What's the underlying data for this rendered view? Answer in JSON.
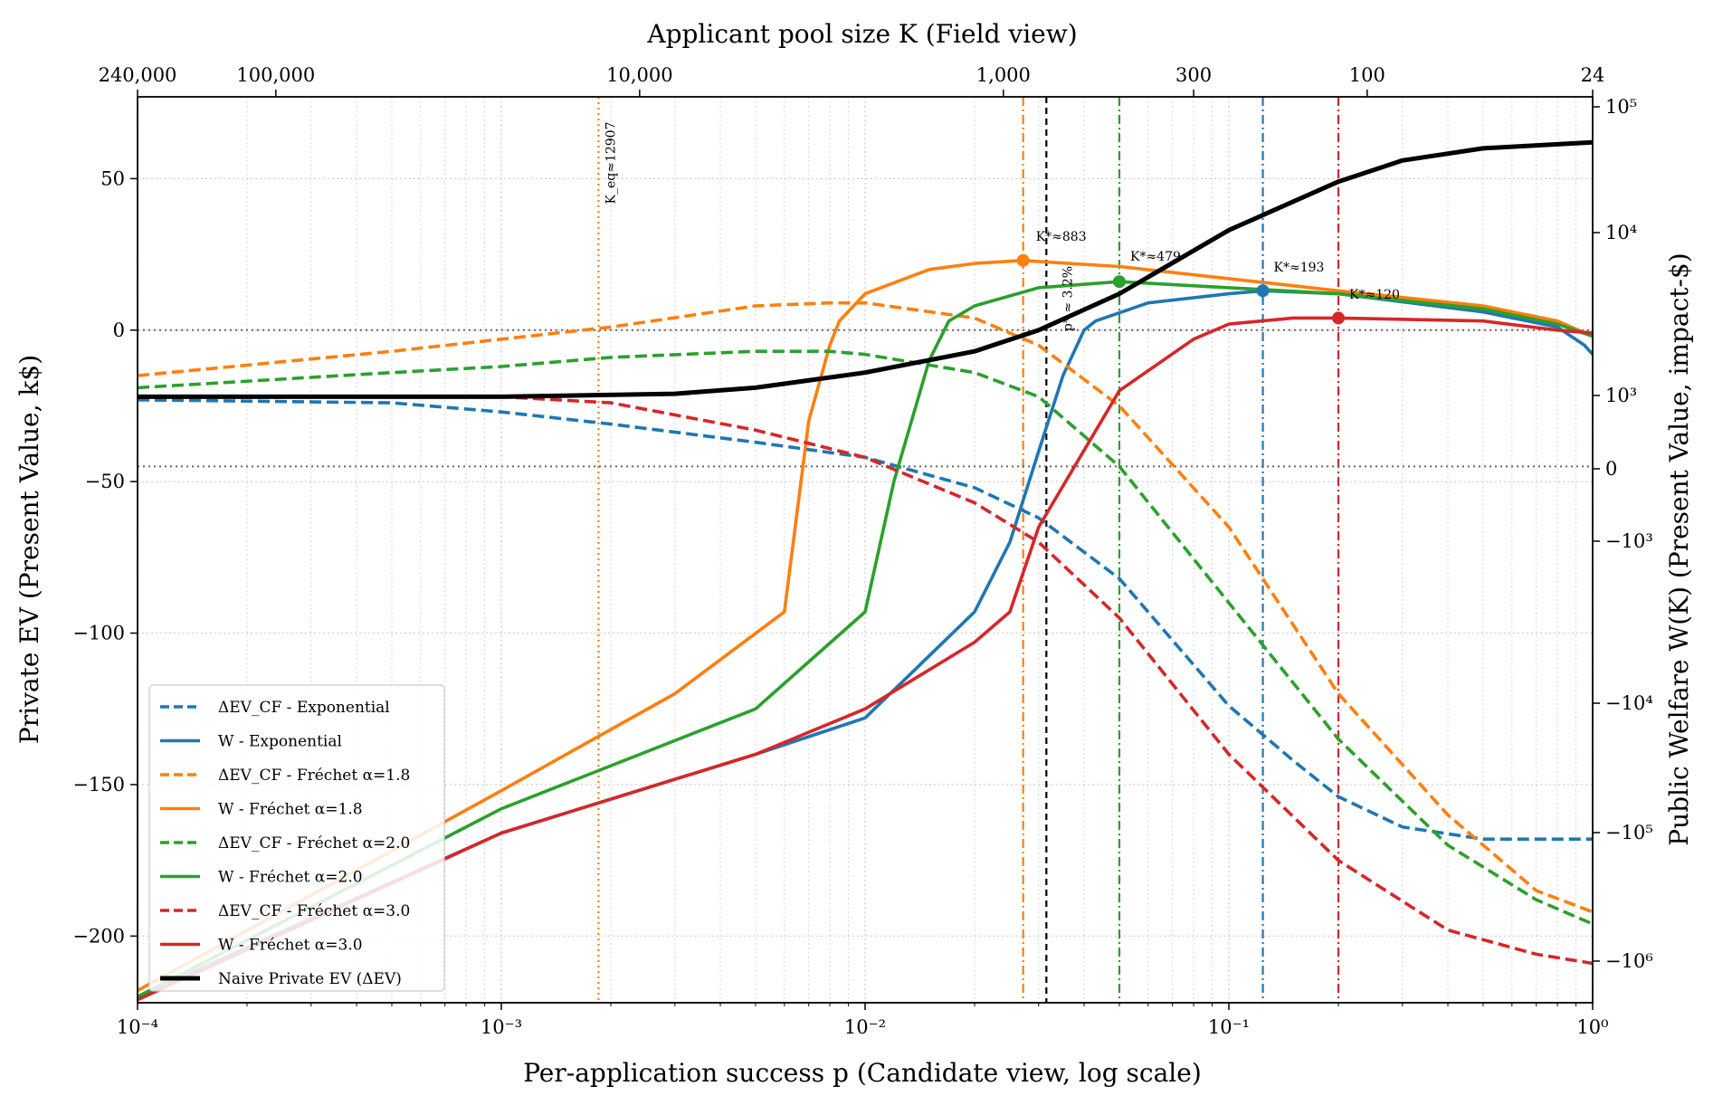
{
  "chart_data": {
    "type": "line",
    "title": "",
    "xlabel": "Per-application success p (Candidate view, log scale)",
    "ylabel_left": "Private EV (Present Value, k$)",
    "ylabel_right": "Public Welfare W(K) (Present Value, impact-$)",
    "top_xlabel": "Applicant pool size K (Field view)",
    "x_scale": "log",
    "xlim": [
      0.0001,
      1
    ],
    "ylim_left": [
      -222,
      77
    ],
    "right_axis_scale": "symlog",
    "grid": true,
    "legend_position": "lower-left",
    "x_ticks": [
      {
        "value": 0.0001,
        "label": "10⁻⁴"
      },
      {
        "value": 0.001,
        "label": "10⁻³"
      },
      {
        "value": 0.01,
        "label": "10⁻²"
      },
      {
        "value": 0.1,
        "label": "10⁻¹"
      },
      {
        "value": 1,
        "label": "10⁰"
      }
    ],
    "top_ticks": [
      {
        "K": 240000,
        "label": "240,000"
      },
      {
        "K": 100000,
        "label": "100,000"
      },
      {
        "K": 10000,
        "label": "10,000"
      },
      {
        "K": 1000,
        "label": "1,000"
      },
      {
        "K": 300,
        "label": "300"
      },
      {
        "K": 100,
        "label": "100"
      },
      {
        "K": 24,
        "label": "24"
      }
    ],
    "left_ticks": [
      {
        "value": 50,
        "label": "50"
      },
      {
        "value": 0,
        "label": "0"
      },
      {
        "value": -50,
        "label": "−50"
      },
      {
        "value": -100,
        "label": "−100"
      },
      {
        "value": -150,
        "label": "−150"
      },
      {
        "value": -200,
        "label": "−200"
      }
    ],
    "right_ticks": [
      {
        "value": 100000,
        "label": "10⁵"
      },
      {
        "value": 10000,
        "label": "10⁴"
      },
      {
        "value": 1000,
        "label": "10³"
      },
      {
        "value": 0,
        "label": "0"
      },
      {
        "value": -1000,
        "label": "−10³"
      },
      {
        "value": -10000,
        "label": "−10⁴"
      },
      {
        "value": -100000,
        "label": "−10⁵"
      },
      {
        "value": -1000000,
        "label": "−10⁶"
      }
    ],
    "hlines": [
      0,
      -45
    ],
    "colors": {
      "exponential": "#1f77b4",
      "frechet_1_8": "#ff7f0e",
      "frechet_2_0": "#2ca02c",
      "frechet_3_0": "#d62728",
      "naive": "#000000"
    },
    "series": [
      {
        "name": "ΔEV_CF - Exponential",
        "color_key": "exponential",
        "style": "dashed",
        "points": [
          [
            0.0001,
            -23
          ],
          [
            0.0005,
            -24
          ],
          [
            0.001,
            -27
          ],
          [
            0.002,
            -31
          ],
          [
            0.005,
            -37
          ],
          [
            0.01,
            -42
          ],
          [
            0.02,
            -52
          ],
          [
            0.03,
            -62
          ],
          [
            0.05,
            -82
          ],
          [
            0.1,
            -124
          ],
          [
            0.15,
            -142
          ],
          [
            0.2,
            -154
          ],
          [
            0.3,
            -164
          ],
          [
            0.5,
            -168
          ],
          [
            1,
            -168
          ]
        ]
      },
      {
        "name": "W - Exponential",
        "color_key": "exponential",
        "style": "solid",
        "points": [
          [
            0.0001,
            -220
          ],
          [
            0.001,
            -166
          ],
          [
            0.005,
            -140
          ],
          [
            0.01,
            -128
          ],
          [
            0.02,
            -93
          ],
          [
            0.025,
            -70
          ],
          [
            0.03,
            -40
          ],
          [
            0.035,
            -15
          ],
          [
            0.04,
            0
          ],
          [
            0.043,
            3
          ],
          [
            0.06,
            9
          ],
          [
            0.1,
            12
          ],
          [
            0.125,
            13
          ],
          [
            0.2,
            12
          ],
          [
            0.5,
            6
          ],
          [
            0.8,
            1
          ],
          [
            0.95,
            -5
          ],
          [
            1,
            -8
          ]
        ]
      },
      {
        "name": "ΔEV_CF - Fréchet α=1.8",
        "color_key": "frechet_1_8",
        "style": "dashed",
        "points": [
          [
            0.0001,
            -15
          ],
          [
            0.0005,
            -7
          ],
          [
            0.001,
            -3
          ],
          [
            0.002,
            1
          ],
          [
            0.005,
            8
          ],
          [
            0.008,
            9
          ],
          [
            0.01,
            9
          ],
          [
            0.02,
            4
          ],
          [
            0.03,
            -5
          ],
          [
            0.05,
            -25
          ],
          [
            0.1,
            -65
          ],
          [
            0.2,
            -120
          ],
          [
            0.4,
            -160
          ],
          [
            0.7,
            -185
          ],
          [
            1,
            -192
          ]
        ]
      },
      {
        "name": "W - Fréchet α=1.8",
        "color_key": "frechet_1_8",
        "style": "solid",
        "points": [
          [
            0.0001,
            -218
          ],
          [
            0.001,
            -152
          ],
          [
            0.003,
            -120
          ],
          [
            0.006,
            -93
          ],
          [
            0.007,
            -30
          ],
          [
            0.008,
            -5
          ],
          [
            0.0085,
            3
          ],
          [
            0.01,
            12
          ],
          [
            0.015,
            20
          ],
          [
            0.02,
            22
          ],
          [
            0.027,
            23
          ],
          [
            0.05,
            21
          ],
          [
            0.1,
            17
          ],
          [
            0.2,
            13
          ],
          [
            0.5,
            8
          ],
          [
            0.8,
            3
          ],
          [
            1,
            -2
          ]
        ]
      },
      {
        "name": "ΔEV_CF - Fréchet α=2.0",
        "color_key": "frechet_2_0",
        "style": "dashed",
        "points": [
          [
            0.0001,
            -19
          ],
          [
            0.0005,
            -14
          ],
          [
            0.001,
            -12
          ],
          [
            0.002,
            -9
          ],
          [
            0.005,
            -7
          ],
          [
            0.008,
            -7
          ],
          [
            0.01,
            -8
          ],
          [
            0.02,
            -14
          ],
          [
            0.03,
            -22
          ],
          [
            0.05,
            -45
          ],
          [
            0.1,
            -90
          ],
          [
            0.2,
            -135
          ],
          [
            0.4,
            -170
          ],
          [
            0.7,
            -188
          ],
          [
            1,
            -196
          ]
        ]
      },
      {
        "name": "W - Fréchet α=2.0",
        "color_key": "frechet_2_0",
        "style": "solid",
        "points": [
          [
            0.0001,
            -220
          ],
          [
            0.001,
            -158
          ],
          [
            0.005,
            -125
          ],
          [
            0.01,
            -93
          ],
          [
            0.012,
            -50
          ],
          [
            0.015,
            -10
          ],
          [
            0.017,
            3
          ],
          [
            0.02,
            8
          ],
          [
            0.03,
            14
          ],
          [
            0.05,
            16
          ],
          [
            0.1,
            14
          ],
          [
            0.2,
            12
          ],
          [
            0.5,
            7
          ],
          [
            0.8,
            2
          ],
          [
            1,
            -2
          ]
        ]
      },
      {
        "name": "ΔEV_CF - Fréchet α=3.0",
        "color_key": "frechet_3_0",
        "style": "dashed",
        "points": [
          [
            0.0001,
            -22
          ],
          [
            0.0005,
            -22
          ],
          [
            0.001,
            -22
          ],
          [
            0.002,
            -24
          ],
          [
            0.005,
            -33
          ],
          [
            0.01,
            -42
          ],
          [
            0.02,
            -57
          ],
          [
            0.03,
            -70
          ],
          [
            0.05,
            -95
          ],
          [
            0.1,
            -140
          ],
          [
            0.2,
            -175
          ],
          [
            0.4,
            -198
          ],
          [
            0.7,
            -206
          ],
          [
            1,
            -209
          ]
        ]
      },
      {
        "name": "W - Fréchet α=3.0",
        "color_key": "frechet_3_0",
        "style": "solid",
        "points": [
          [
            0.0001,
            -221
          ],
          [
            0.001,
            -166
          ],
          [
            0.005,
            -140
          ],
          [
            0.01,
            -125
          ],
          [
            0.02,
            -103
          ],
          [
            0.025,
            -93
          ],
          [
            0.03,
            -65
          ],
          [
            0.05,
            -20
          ],
          [
            0.08,
            -3
          ],
          [
            0.1,
            2
          ],
          [
            0.15,
            4
          ],
          [
            0.2,
            4
          ],
          [
            0.5,
            3
          ],
          [
            0.8,
            0
          ],
          [
            1,
            -1
          ]
        ]
      },
      {
        "name": "Naive Private EV (ΔEV)",
        "color_key": "naive",
        "style": "thick",
        "points": [
          [
            0.0001,
            -22
          ],
          [
            0.001,
            -22
          ],
          [
            0.003,
            -21
          ],
          [
            0.005,
            -19
          ],
          [
            0.01,
            -14
          ],
          [
            0.02,
            -7
          ],
          [
            0.03,
            0
          ],
          [
            0.05,
            12
          ],
          [
            0.1,
            33
          ],
          [
            0.2,
            49
          ],
          [
            0.3,
            56
          ],
          [
            0.5,
            60
          ],
          [
            1,
            62
          ]
        ]
      }
    ],
    "vlines": [
      {
        "x": 0.00185,
        "color_key": "frechet_1_8",
        "style": "dotted",
        "label": "K_eq≈12907"
      },
      {
        "x": 0.0272,
        "color_key": "frechet_1_8",
        "style": "dashdot",
        "label": "K*≈883"
      },
      {
        "x": 0.0315,
        "color_key": "naive",
        "style": "dashed",
        "label": "p* ≈ 3.2%"
      },
      {
        "x": 0.05,
        "color_key": "frechet_2_0",
        "style": "dashdot",
        "label": "K*≈479"
      },
      {
        "x": 0.124,
        "color_key": "exponential",
        "style": "dashdot",
        "label": "K*≈193"
      },
      {
        "x": 0.2,
        "color_key": "frechet_3_0",
        "style": "dashdot",
        "label": "K*≈120"
      }
    ],
    "markers": [
      {
        "x": 0.0272,
        "y": 23,
        "color_key": "frechet_1_8"
      },
      {
        "x": 0.05,
        "y": 16,
        "color_key": "frechet_2_0"
      },
      {
        "x": 0.124,
        "y": 13,
        "color_key": "exponential"
      },
      {
        "x": 0.2,
        "y": 4,
        "color_key": "frechet_3_0"
      }
    ]
  }
}
